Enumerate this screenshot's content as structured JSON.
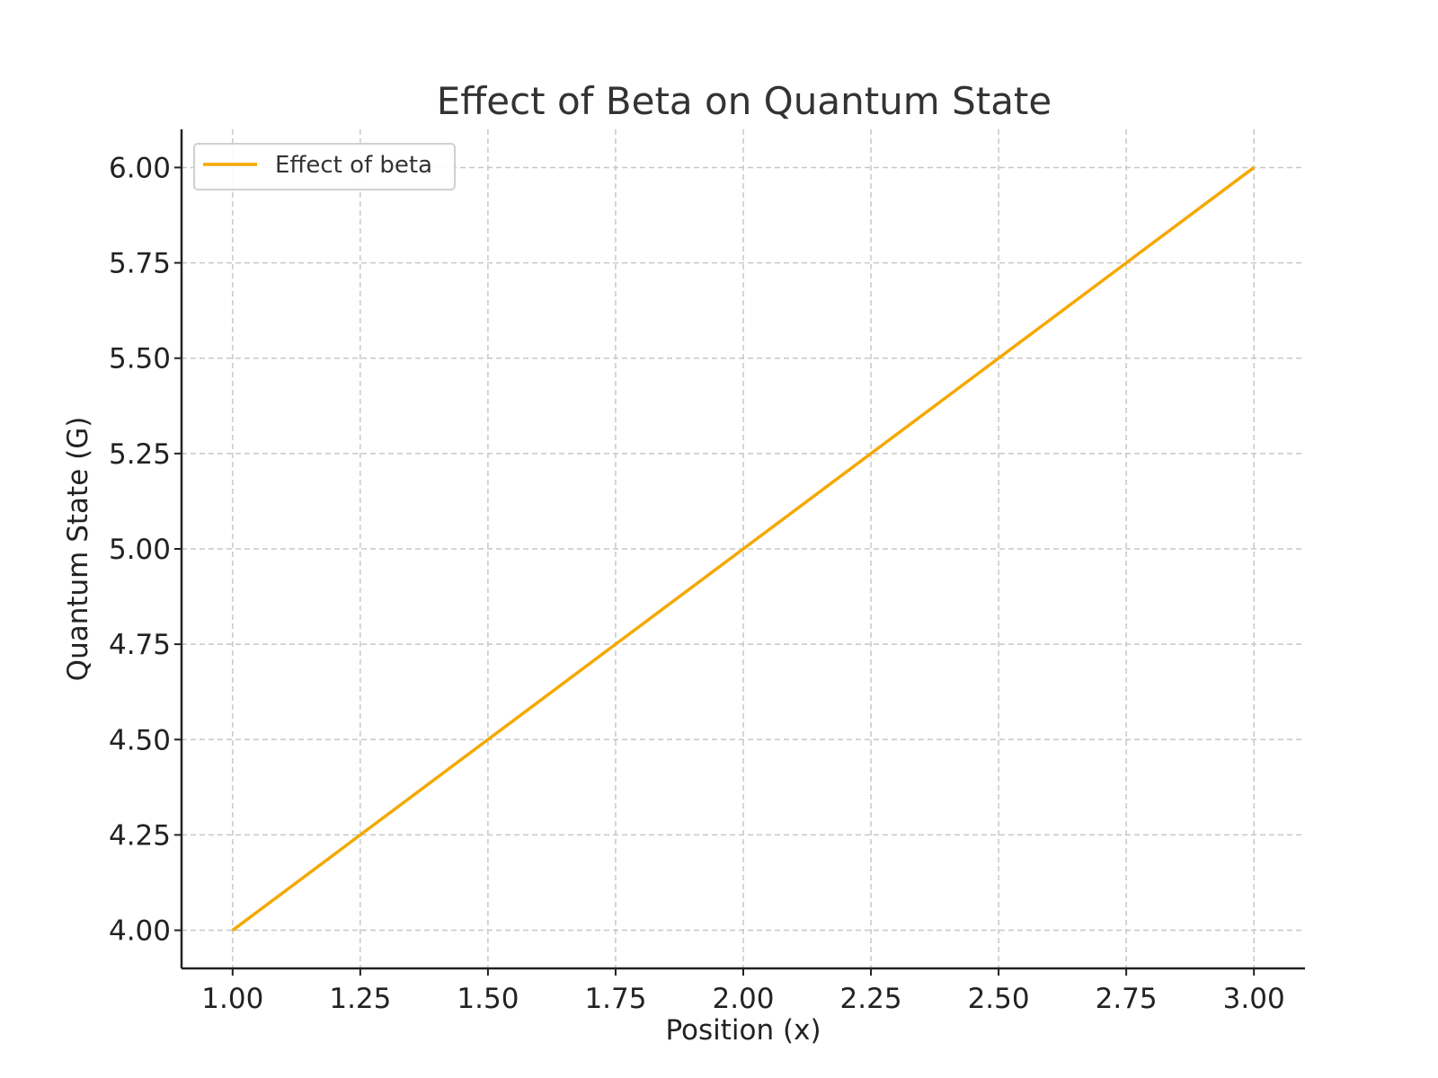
{
  "chart_data": {
    "type": "line",
    "title": "Effect of Beta on Quantum State",
    "xlabel": "Position (x)",
    "ylabel": "Quantum State (G)",
    "xlim": [
      0.9,
      3.1
    ],
    "ylim": [
      3.9,
      6.1
    ],
    "xticks": [
      1.0,
      1.25,
      1.5,
      1.75,
      2.0,
      2.25,
      2.5,
      2.75,
      3.0
    ],
    "yticks": [
      4.0,
      4.25,
      4.5,
      4.75,
      5.0,
      5.25,
      5.5,
      5.75,
      6.0
    ],
    "xtick_labels": [
      "1.00",
      "1.25",
      "1.50",
      "1.75",
      "2.00",
      "2.25",
      "2.50",
      "2.75",
      "3.00"
    ],
    "ytick_labels": [
      "4.00",
      "4.25",
      "4.50",
      "4.75",
      "5.00",
      "5.25",
      "5.50",
      "5.75",
      "6.00"
    ],
    "grid": true,
    "legend_position": "top-left",
    "series": [
      {
        "name": "Effect of beta",
        "color": "#f5a800",
        "x": [
          1.0,
          1.25,
          1.5,
          1.75,
          2.0,
          2.25,
          2.5,
          2.75,
          3.0
        ],
        "y": [
          4.0,
          4.25,
          4.5,
          4.75,
          5.0,
          5.25,
          5.5,
          5.75,
          6.0
        ]
      }
    ]
  }
}
